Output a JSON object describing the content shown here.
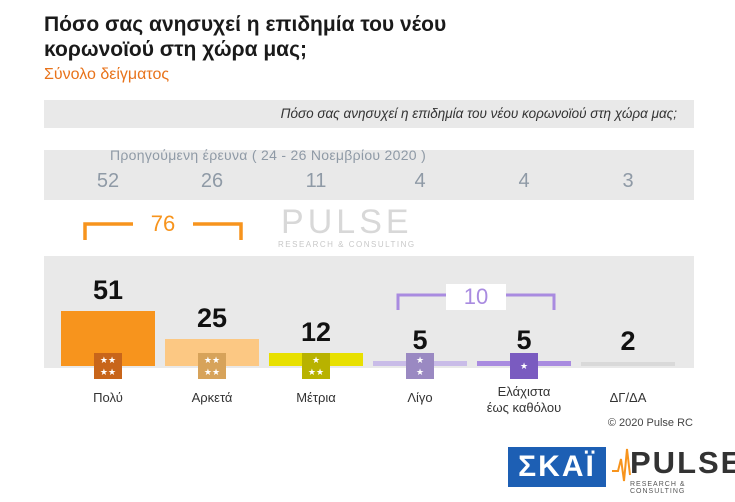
{
  "title": "Πόσο σας ανησυχεί η επιδημία του νέου κορωνοϊού στη χώρα μας;",
  "subtitle": "Σύνολο δείγματος",
  "question": "Πόσο σας ανησυχεί η επιδημία του νέου κορωνοϊού στη χώρα μας;",
  "previous": {
    "label": "Προηγούμενη έρευνα ( 24 - 26 Νοεμβρίου 2020 )",
    "values": [
      "52",
      "26",
      "11",
      "4",
      "4",
      "3"
    ]
  },
  "brackets": {
    "left_value": "76",
    "right_value": "10",
    "left_color": "#f7941d",
    "right_color": "#a98be0"
  },
  "watermark": {
    "big": "PULSE",
    "small": "RESEARCH & CONSULTING"
  },
  "chart_data": {
    "type": "bar",
    "categories": [
      "Πολύ",
      "Αρκετά",
      "Μέτρια",
      "Λίγο",
      "Ελάχιστα έως καθόλου",
      "ΔΓ/ΔΑ"
    ],
    "category_lines": [
      [
        "Πολύ"
      ],
      [
        "Αρκετά"
      ],
      [
        "Μέτρια"
      ],
      [
        "Λίγο"
      ],
      [
        "Ελάχιστα",
        "έως καθόλου"
      ],
      [
        "ΔΓ/ΔΑ"
      ]
    ],
    "values": [
      51,
      25,
      12,
      5,
      5,
      2
    ],
    "value_labels": [
      "51",
      "25",
      "12",
      "5",
      "5",
      "2"
    ],
    "colors": [
      "#f7941d",
      "#fcc883",
      "#e8e000",
      "#c9bce8",
      "#a98be0",
      "#d9d9d9"
    ],
    "icon_colors": [
      "#c8651a",
      "#d7a35a",
      "#b8b200",
      "#9a89c2",
      "#7a5bc0",
      ""
    ],
    "icon_stars": [
      4,
      4,
      3,
      2,
      1,
      0
    ],
    "previous_values": [
      52,
      26,
      11,
      4,
      4,
      3
    ],
    "ylim": [
      0,
      55
    ],
    "title": "Πόσο σας ανησυχεί η επιδημία του νέου κορωνοϊού στη χώρα μας;"
  },
  "footer": {
    "copyright": "© 2020 Pulse RC",
    "logo_skai": "ΣΚΑΪ",
    "logo_pulse": "PULSE",
    "logo_pulse_sub": "RESEARCH & CONSULTING"
  }
}
